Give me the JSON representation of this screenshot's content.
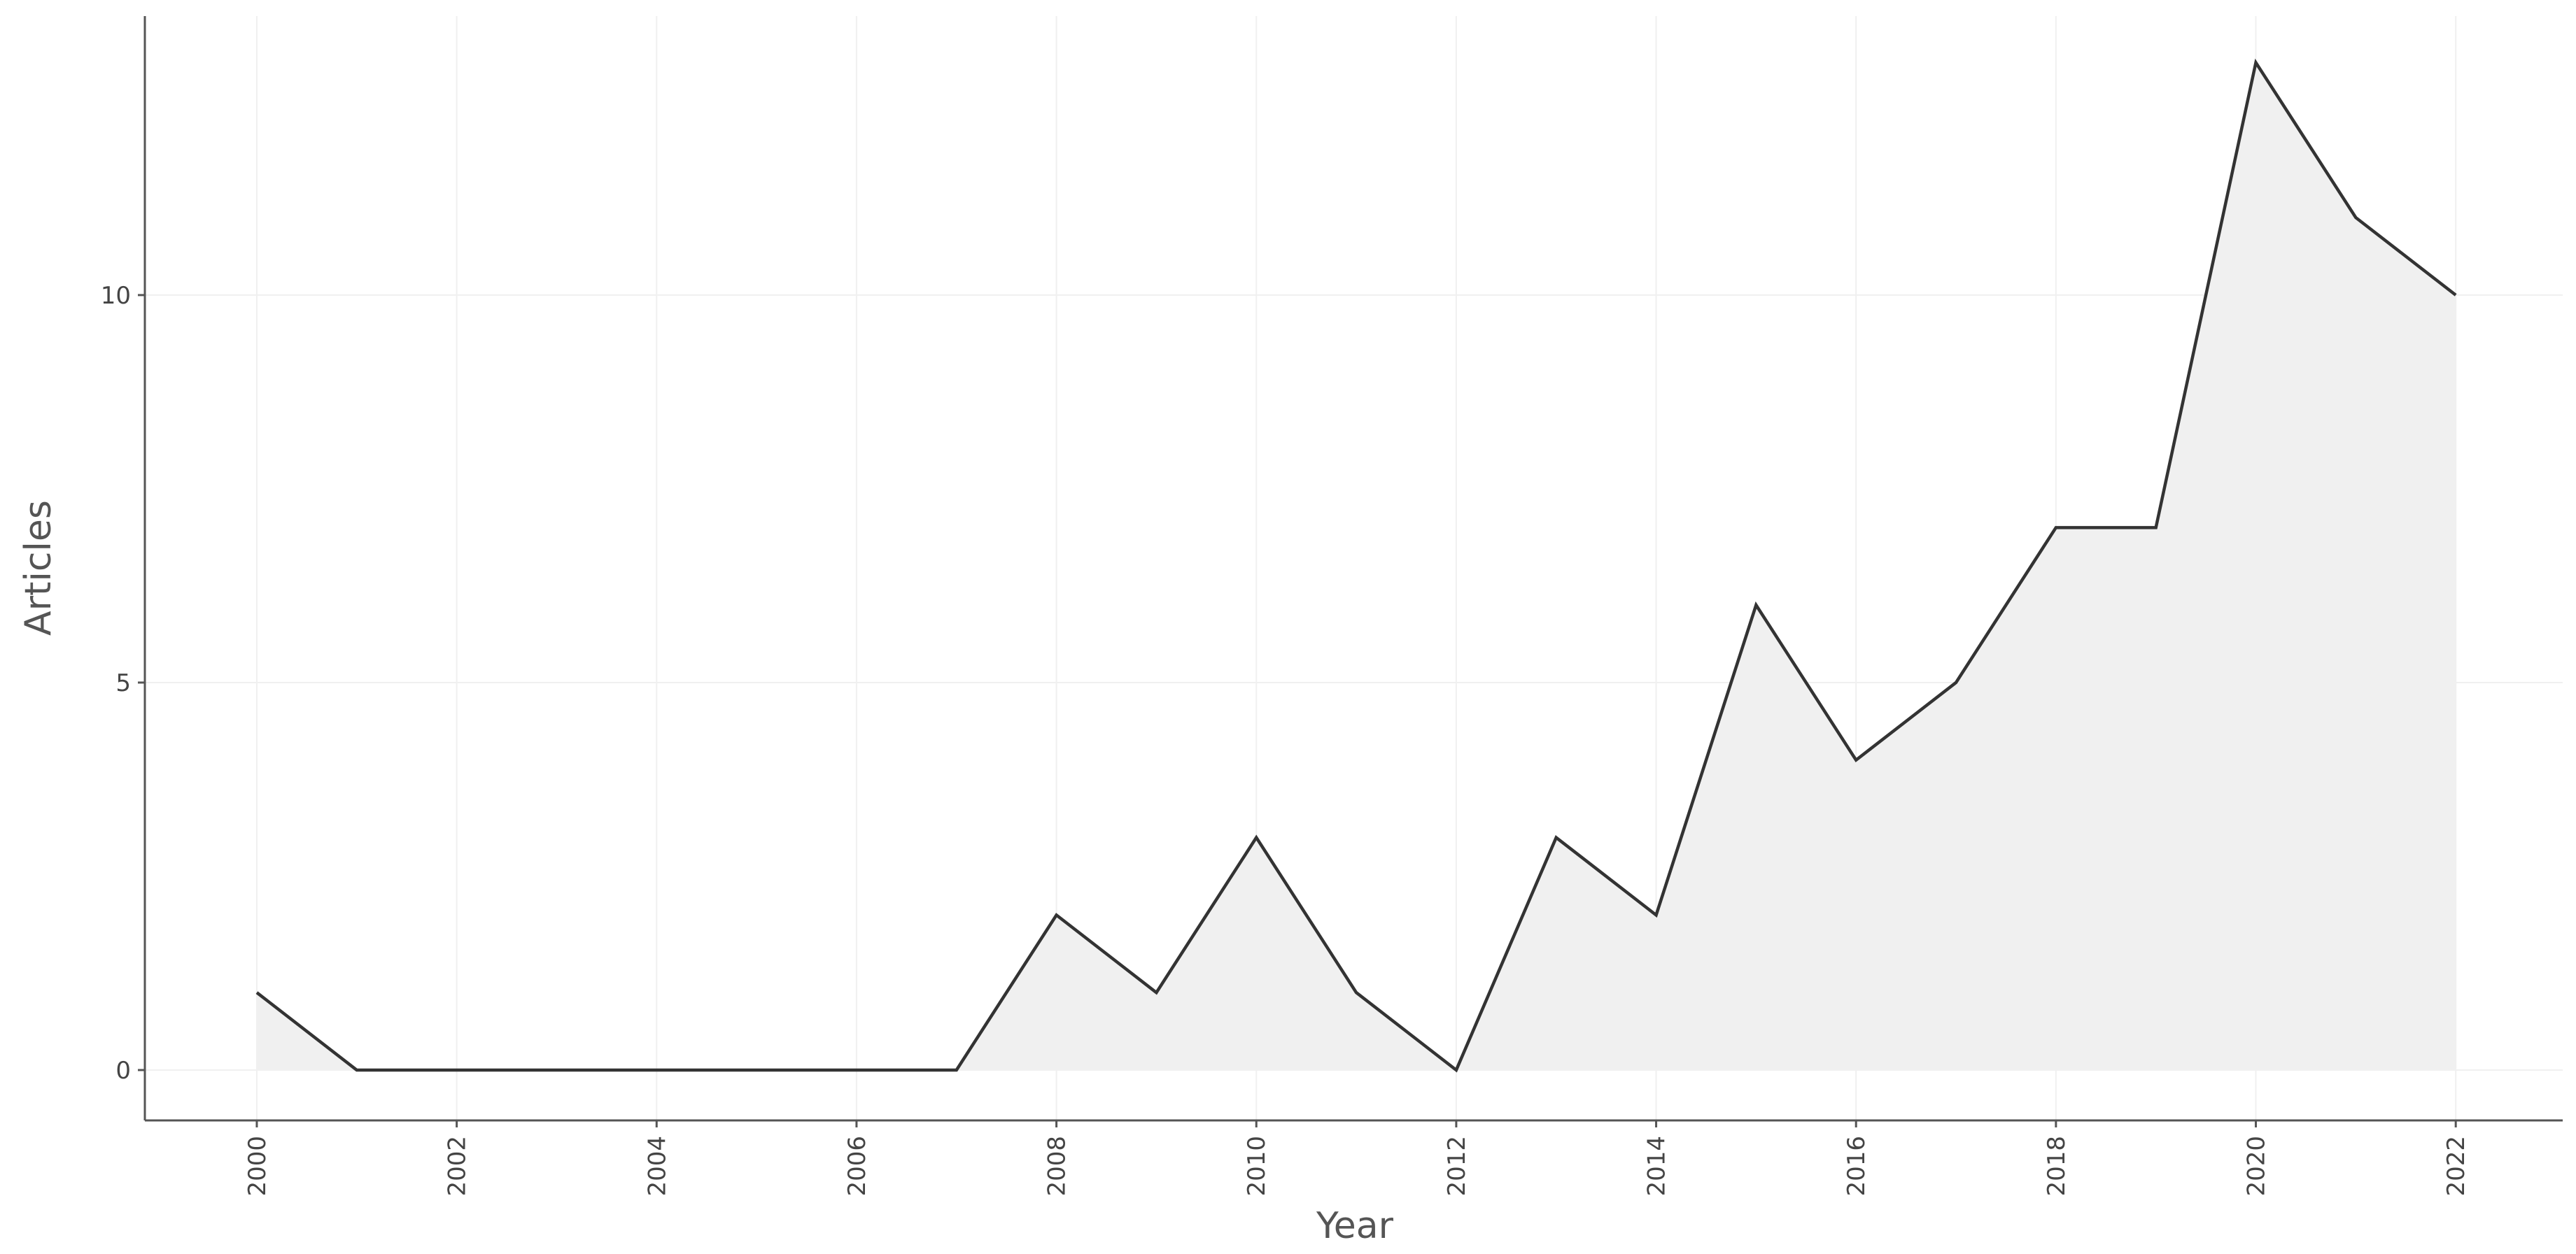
{
  "chart_data": {
    "type": "area",
    "x_label": "Year",
    "y_label": "Articles",
    "x": [
      2000,
      2001,
      2002,
      2003,
      2004,
      2005,
      2006,
      2007,
      2008,
      2009,
      2010,
      2011,
      2012,
      2013,
      2014,
      2015,
      2016,
      2017,
      2018,
      2019,
      2020,
      2021,
      2022
    ],
    "series": [
      {
        "name": "Articles",
        "color": "#333333",
        "fill": "#f0f0f0",
        "values": [
          1,
          0,
          0,
          0,
          0,
          0,
          0,
          0,
          2,
          1,
          3,
          1,
          0,
          3,
          2,
          6,
          4,
          5,
          7,
          7,
          13,
          11,
          10
        ]
      }
    ],
    "xlim": [
      1998.88,
      2023.07
    ],
    "ylim": [
      -0.65,
      13.6
    ],
    "xticks": [
      2000,
      2002,
      2004,
      2006,
      2008,
      2010,
      2012,
      2014,
      2016,
      2018,
      2020,
      2022
    ],
    "yticks": [
      0,
      5,
      10
    ],
    "grid": true
  }
}
